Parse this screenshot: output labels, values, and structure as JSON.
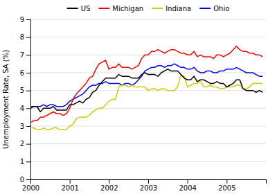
{
  "chart_data": {
    "type": "line",
    "ylabel": "Unemployment Rate, SA (%)",
    "x": [
      2000,
      2000.083333333333,
      2000.166666666667,
      2000.25,
      2000.333333333333,
      2000.416666666667,
      2000.5,
      2000.583333333333,
      2000.666666666667,
      2000.75,
      2000.833333333333,
      2000.916666666667,
      2001,
      2001.083333333333,
      2001.166666666667,
      2001.25,
      2001.333333333333,
      2001.416666666667,
      2001.5,
      2001.583333333333,
      2001.666666666667,
      2001.75,
      2001.833333333333,
      2001.916666666667,
      2002,
      2002.083333333333,
      2002.166666666667,
      2002.25,
      2002.333333333333,
      2002.416666666667,
      2002.5,
      2002.583333333333,
      2002.666666666667,
      2002.75,
      2002.833333333333,
      2002.916666666667,
      2003,
      2003.083333333333,
      2003.166666666667,
      2003.25,
      2003.333333333333,
      2003.416666666667,
      2003.5,
      2003.583333333333,
      2003.666666666667,
      2003.75,
      2003.833333333333,
      2003.916666666667,
      2004,
      2004.083333333333,
      2004.166666666667,
      2004.25,
      2004.333333333333,
      2004.416666666667,
      2004.5,
      2004.583333333333,
      2004.666666666667,
      2004.75,
      2004.833333333333,
      2004.916666666667,
      2005,
      2005.083333333333,
      2005.166666666667,
      2005.25,
      2005.333333333333,
      2005.416666666667,
      2005.5,
      2005.583333333333,
      2005.666666666667,
      2005.75,
      2005.833333333333,
      2005.916666666667
    ],
    "series": [
      {
        "name": "US",
        "color": "black",
        "values": [
          4.0,
          4.1,
          4.1,
          3.8,
          4.0,
          4.0,
          4.0,
          4.1,
          3.9,
          3.9,
          3.9,
          3.9,
          4.2,
          4.2,
          4.3,
          4.4,
          4.3,
          4.5,
          4.6,
          4.9,
          5.0,
          5.3,
          5.5,
          5.7,
          5.7,
          5.7,
          5.7,
          5.9,
          5.8,
          5.8,
          5.8,
          5.7,
          5.7,
          5.7,
          5.9,
          6.0,
          5.9,
          5.9,
          5.9,
          5.8,
          6.0,
          6.1,
          6.2,
          6.1,
          6.1,
          6.1,
          5.9,
          5.7,
          5.6,
          5.6,
          5.8,
          5.5,
          5.6,
          5.6,
          5.5,
          5.4,
          5.4,
          5.5,
          5.4,
          5.4,
          5.2,
          5.3,
          5.4,
          5.6,
          5.6,
          5.1,
          5.0,
          5.0,
          5.0,
          4.9,
          5.0,
          4.9
        ]
      },
      {
        "name": "Michigan",
        "color": "red",
        "values": [
          3.2,
          3.3,
          3.3,
          3.5,
          3.5,
          3.6,
          3.7,
          3.8,
          3.7,
          3.7,
          3.6,
          3.7,
          4.0,
          4.5,
          4.8,
          5.0,
          5.2,
          5.4,
          5.7,
          5.8,
          6.2,
          6.5,
          6.6,
          6.7,
          6.2,
          6.3,
          6.3,
          6.5,
          6.3,
          6.3,
          6.3,
          6.2,
          6.3,
          6.4,
          6.8,
          7.0,
          7.0,
          7.2,
          7.2,
          7.3,
          7.2,
          7.1,
          7.2,
          7.3,
          7.3,
          7.2,
          7.1,
          7.1,
          7.0,
          7.0,
          7.2,
          6.9,
          7.0,
          6.9,
          6.9,
          6.9,
          6.8,
          7.0,
          7.0,
          6.9,
          7.0,
          7.1,
          7.3,
          7.5,
          7.3,
          7.2,
          7.2,
          7.1,
          7.1,
          7.0,
          7.0,
          6.9
        ]
      },
      {
        "name": "Indiana",
        "color": "#cccc00",
        "values": [
          2.9,
          2.9,
          2.8,
          2.8,
          2.9,
          2.8,
          2.8,
          2.9,
          2.9,
          2.8,
          2.8,
          2.8,
          3.0,
          3.1,
          3.4,
          3.5,
          3.5,
          3.5,
          3.6,
          3.8,
          3.9,
          4.0,
          4.0,
          4.2,
          4.4,
          4.5,
          4.5,
          5.2,
          5.3,
          5.3,
          5.2,
          5.3,
          5.2,
          5.2,
          5.2,
          5.2,
          5.0,
          5.1,
          5.1,
          5.0,
          5.1,
          5.1,
          5.0,
          5.0,
          5.0,
          5.2,
          5.9,
          5.8,
          5.2,
          5.3,
          5.4,
          5.4,
          5.5,
          5.2,
          5.2,
          5.3,
          5.2,
          5.2,
          5.1,
          5.1,
          5.2,
          5.2,
          5.2,
          5.3,
          5.3,
          5.1,
          5.1,
          5.2,
          5.4,
          5.4,
          5.4,
          5.4
        ]
      },
      {
        "name": "Ohio",
        "color": "blue",
        "values": [
          4.1,
          4.1,
          4.1,
          4.1,
          4.2,
          4.1,
          4.2,
          4.2,
          4.1,
          4.1,
          4.1,
          4.2,
          4.4,
          4.5,
          4.6,
          4.7,
          4.8,
          5.0,
          5.2,
          5.3,
          5.3,
          5.4,
          5.4,
          5.5,
          5.4,
          5.4,
          5.4,
          5.4,
          5.3,
          5.4,
          5.4,
          5.3,
          5.4,
          5.6,
          5.8,
          6.1,
          6.2,
          6.3,
          6.3,
          6.4,
          6.4,
          6.3,
          6.4,
          6.4,
          6.5,
          6.4,
          6.3,
          6.3,
          6.2,
          6.2,
          6.3,
          6.1,
          6.0,
          6.0,
          6.1,
          6.1,
          6.0,
          6.0,
          6.1,
          6.1,
          6.2,
          6.2,
          6.2,
          6.3,
          6.2,
          6.1,
          6.0,
          6.0,
          6.0,
          5.9,
          5.8,
          5.8
        ]
      }
    ],
    "xlim": [
      2000,
      2006
    ],
    "xticks": [
      2000,
      2001,
      2002,
      2003,
      2004,
      2005
    ],
    "ylim": [
      0,
      9
    ],
    "yticks": [
      0,
      1,
      2,
      3,
      4,
      5,
      6,
      7,
      8,
      9
    ],
    "grid": true,
    "legend": "top"
  }
}
